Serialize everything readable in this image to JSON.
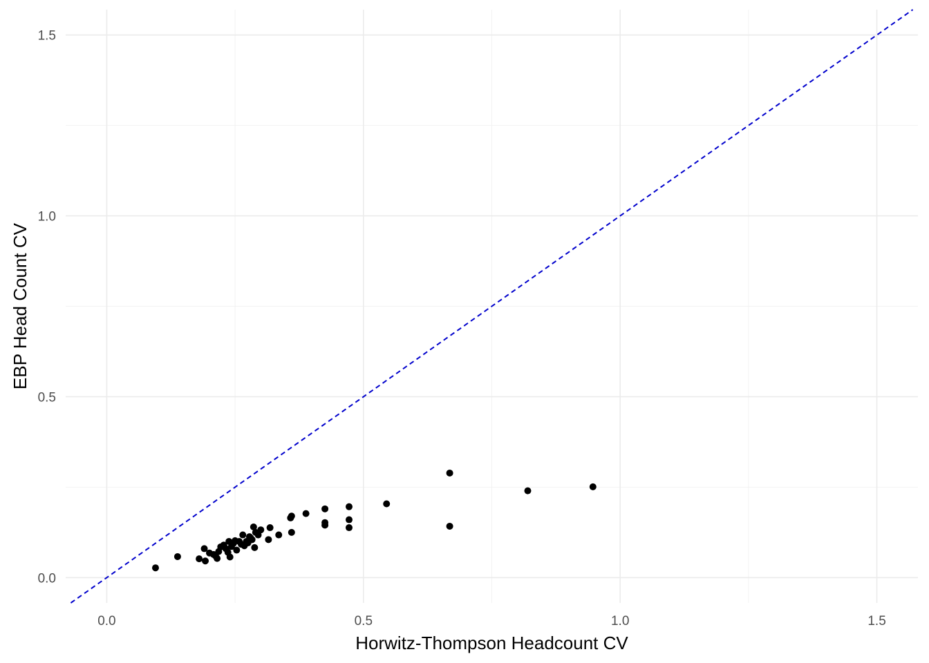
{
  "chart_data": {
    "type": "scatter",
    "title": "",
    "xlabel": "Horwitz-Thompson Headcount CV",
    "ylabel": "EBP Head Count CV",
    "xlim": [
      -0.08,
      1.58
    ],
    "ylim": [
      -0.07,
      1.57
    ],
    "x_ticks": [
      0.0,
      0.5,
      1.0,
      1.5
    ],
    "x_tick_labels": [
      "0.0",
      "0.5",
      "1.0",
      "1.5"
    ],
    "y_ticks": [
      0.0,
      0.5,
      1.0,
      1.5
    ],
    "y_tick_labels": [
      "0.0",
      "0.5",
      "1.0",
      "1.5"
    ],
    "x_minor_ticks": [
      0.25,
      0.75,
      1.25
    ],
    "y_minor_ticks": [
      0.25,
      0.75,
      1.25
    ],
    "grid": true,
    "legend": "none",
    "reference_line": {
      "type": "identity",
      "slope": 1,
      "intercept": 0,
      "style": "dashed",
      "color": "#0000cc"
    },
    "point_color": "#000000",
    "series": [
      {
        "points": [
          [
            0.095,
            0.027
          ],
          [
            0.138,
            0.058
          ],
          [
            0.18,
            0.052
          ],
          [
            0.19,
            0.08
          ],
          [
            0.192,
            0.046
          ],
          [
            0.2,
            0.068
          ],
          [
            0.208,
            0.064
          ],
          [
            0.212,
            0.06
          ],
          [
            0.215,
            0.053
          ],
          [
            0.218,
            0.072
          ],
          [
            0.222,
            0.085
          ],
          [
            0.228,
            0.09
          ],
          [
            0.232,
            0.08
          ],
          [
            0.236,
            0.07
          ],
          [
            0.238,
            0.1
          ],
          [
            0.24,
            0.057
          ],
          [
            0.243,
            0.086
          ],
          [
            0.247,
            0.095
          ],
          [
            0.25,
            0.102
          ],
          [
            0.253,
            0.076
          ],
          [
            0.258,
            0.1
          ],
          [
            0.262,
            0.092
          ],
          [
            0.265,
            0.118
          ],
          [
            0.268,
            0.088
          ],
          [
            0.272,
            0.1
          ],
          [
            0.275,
            0.096
          ],
          [
            0.278,
            0.113
          ],
          [
            0.28,
            0.11
          ],
          [
            0.283,
            0.105
          ],
          [
            0.286,
            0.14
          ],
          [
            0.288,
            0.083
          ],
          [
            0.29,
            0.125
          ],
          [
            0.295,
            0.118
          ],
          [
            0.3,
            0.132
          ],
          [
            0.315,
            0.105
          ],
          [
            0.318,
            0.138
          ],
          [
            0.335,
            0.118
          ],
          [
            0.358,
            0.165
          ],
          [
            0.36,
            0.17
          ],
          [
            0.36,
            0.125
          ],
          [
            0.388,
            0.177
          ],
          [
            0.425,
            0.19
          ],
          [
            0.425,
            0.152
          ],
          [
            0.425,
            0.145
          ],
          [
            0.472,
            0.196
          ],
          [
            0.472,
            0.16
          ],
          [
            0.472,
            0.138
          ],
          [
            0.545,
            0.204
          ],
          [
            0.668,
            0.289
          ],
          [
            0.668,
            0.142
          ],
          [
            0.82,
            0.24
          ],
          [
            0.947,
            0.251
          ]
        ]
      }
    ]
  }
}
